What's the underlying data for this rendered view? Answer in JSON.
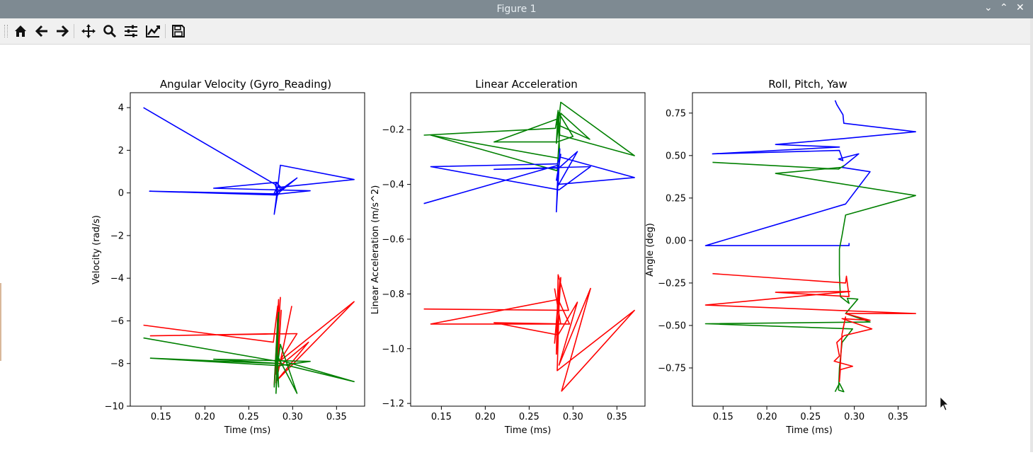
{
  "window": {
    "title": "Figure 1",
    "controls": [
      "⌄",
      "⌃",
      "✕"
    ]
  },
  "toolbar": {
    "buttons": [
      {
        "name": "home-icon"
      },
      {
        "name": "back-arrow-icon"
      },
      {
        "name": "forward-arrow-icon"
      },
      {
        "name": "pan-icon"
      },
      {
        "name": "zoom-icon"
      },
      {
        "name": "subplots-config-icon"
      },
      {
        "name": "edit-axis-icon"
      },
      {
        "name": "save-icon"
      }
    ]
  },
  "colors": {
    "blue": "#0000ff",
    "green": "#008000",
    "red": "#ff0000"
  },
  "chart_data": [
    {
      "type": "line",
      "title": "Angular Velocity (Gyro_Reading)",
      "xlabel": "Time (ms)",
      "ylabel": "Velocity (rad/s)",
      "xlim": [
        0.115,
        0.382
      ],
      "ylim": [
        -10.0,
        4.7
      ],
      "xticks": [
        "0.15",
        "0.20",
        "0.25",
        "0.30",
        "0.35"
      ],
      "xtick_values": [
        0.15,
        0.2,
        0.25,
        0.3,
        0.35
      ],
      "yticks": [
        "4",
        "2",
        "0",
        "−2",
        "−4",
        "−6",
        "−8",
        "−10"
      ],
      "ytick_values": [
        4,
        2,
        0,
        -2,
        -4,
        -6,
        -8,
        -10
      ],
      "grid": false,
      "series": [
        {
          "color": "blue",
          "points": [
            [
              0.13,
              4.0
            ],
            [
              0.28,
              0.4
            ],
            [
              0.283,
              0.0
            ],
            [
              0.279,
              -1.0
            ],
            [
              0.284,
              0.6
            ],
            [
              0.286,
              1.3
            ],
            [
              0.37,
              0.63
            ],
            [
              0.282,
              0.25
            ],
            [
              0.278,
              -0.1
            ],
            [
              0.305,
              0.7
            ],
            [
              0.287,
              0.1
            ],
            [
              0.282,
              0.5
            ],
            [
              0.21,
              0.22
            ],
            [
              0.32,
              0.1
            ],
            [
              0.285,
              -0.05
            ],
            [
              0.137,
              0.08
            ],
            [
              0.283,
              -0.1
            ],
            [
              0.288,
              0.2
            ],
            [
              0.281,
              0.5
            ],
            [
              0.282,
              -0.3
            ]
          ]
        },
        {
          "color": "red",
          "points": [
            [
              0.13,
              -6.2
            ],
            [
              0.278,
              -7.0
            ],
            [
              0.283,
              -5.3
            ],
            [
              0.281,
              -8.5
            ],
            [
              0.286,
              -4.9
            ],
            [
              0.279,
              -9.0
            ],
            [
              0.284,
              -5.0
            ],
            [
              0.282,
              -8.8
            ],
            [
              0.37,
              -5.1
            ],
            [
              0.285,
              -7.9
            ],
            [
              0.305,
              -6.6
            ],
            [
              0.138,
              -6.7
            ],
            [
              0.283,
              -6.6
            ],
            [
              0.28,
              -8.3
            ],
            [
              0.318,
              -7.0
            ],
            [
              0.282,
              -8.8
            ],
            [
              0.287,
              -5.5
            ],
            [
              0.281,
              -8.9
            ],
            [
              0.299,
              -5.3
            ]
          ]
        },
        {
          "color": "green",
          "points": [
            [
              0.13,
              -6.8
            ],
            [
              0.283,
              -7.9
            ],
            [
              0.281,
              -9.4
            ],
            [
              0.284,
              -5.6
            ],
            [
              0.279,
              -9.1
            ],
            [
              0.283,
              -5.9
            ],
            [
              0.282,
              -7.8
            ],
            [
              0.37,
              -8.85
            ],
            [
              0.285,
              -8.0
            ],
            [
              0.21,
              -7.8
            ],
            [
              0.32,
              -7.9
            ],
            [
              0.285,
              -8.1
            ],
            [
              0.138,
              -7.75
            ],
            [
              0.283,
              -8.0
            ],
            [
              0.286,
              -7.1
            ],
            [
              0.305,
              -9.4
            ],
            [
              0.281,
              -7.5
            ],
            [
              0.284,
              -9.1
            ],
            [
              0.282,
              -6.9
            ]
          ]
        }
      ]
    },
    {
      "type": "line",
      "title": "Linear Acceleration",
      "xlabel": "Time (ms)",
      "ylabel": "Linear Acceleration (m/s^2)",
      "xlim": [
        0.115,
        0.382
      ],
      "ylim": [
        -1.21,
        -0.065
      ],
      "xticks": [
        "0.15",
        "0.20",
        "0.25",
        "0.30",
        "0.35"
      ],
      "xtick_values": [
        0.15,
        0.2,
        0.25,
        0.3,
        0.35
      ],
      "yticks": [
        "−0.2",
        "−0.4",
        "−0.6",
        "−0.8",
        "−1.0",
        "−1.2"
      ],
      "ytick_values": [
        -0.2,
        -0.4,
        -0.6,
        -0.8,
        -1.0,
        -1.2
      ],
      "grid": false,
      "series": [
        {
          "color": "green",
          "points": [
            [
              0.13,
              -0.22
            ],
            [
              0.28,
              -0.195
            ],
            [
              0.283,
              -0.13
            ],
            [
              0.281,
              -0.25
            ],
            [
              0.286,
              -0.1
            ],
            [
              0.37,
              -0.295
            ],
            [
              0.285,
              -0.22
            ],
            [
              0.283,
              -0.135
            ],
            [
              0.3,
              -0.225
            ],
            [
              0.282,
              -0.245
            ],
            [
              0.21,
              -0.245
            ],
            [
              0.283,
              -0.16
            ],
            [
              0.285,
              -0.305
            ],
            [
              0.138,
              -0.22
            ],
            [
              0.282,
              -0.35
            ],
            [
              0.286,
              -0.14
            ],
            [
              0.319,
              -0.235
            ],
            [
              0.281,
              -0.18
            ]
          ]
        },
        {
          "color": "blue",
          "points": [
            [
              0.13,
              -0.47
            ],
            [
              0.283,
              -0.33
            ],
            [
              0.281,
              -0.5
            ],
            [
              0.285,
              -0.27
            ],
            [
              0.283,
              -0.4
            ],
            [
              0.37,
              -0.375
            ],
            [
              0.285,
              -0.3
            ],
            [
              0.282,
              -0.41
            ],
            [
              0.305,
              -0.28
            ],
            [
              0.284,
              -0.34
            ],
            [
              0.21,
              -0.345
            ],
            [
              0.32,
              -0.335
            ],
            [
              0.284,
              -0.42
            ],
            [
              0.138,
              -0.335
            ],
            [
              0.282,
              -0.325
            ],
            [
              0.286,
              -0.29
            ],
            [
              0.281,
              -0.385
            ],
            [
              0.283,
              -0.36
            ]
          ]
        },
        {
          "color": "red",
          "points": [
            [
              0.13,
              -0.855
            ],
            [
              0.295,
              -0.86
            ],
            [
              0.283,
              -0.73
            ],
            [
              0.281,
              -1.02
            ],
            [
              0.286,
              -0.74
            ],
            [
              0.279,
              -0.98
            ],
            [
              0.285,
              -0.75
            ],
            [
              0.282,
              -1.08
            ],
            [
              0.37,
              -0.86
            ],
            [
              0.287,
              -1.155
            ],
            [
              0.32,
              -0.78
            ],
            [
              0.284,
              -1.06
            ],
            [
              0.305,
              -0.83
            ],
            [
              0.283,
              -0.95
            ],
            [
              0.21,
              -0.905
            ],
            [
              0.296,
              -0.91
            ],
            [
              0.283,
              -0.82
            ],
            [
              0.138,
              -0.91
            ],
            [
              0.286,
              -0.91
            ],
            [
              0.279,
              -0.78
            ]
          ]
        }
      ]
    },
    {
      "type": "line",
      "title": "Roll, Pitch, Yaw",
      "xlabel": "Time (ms)",
      "ylabel": "Angle (deg)",
      "xlim": [
        0.115,
        0.382
      ],
      "ylim": [
        -0.975,
        0.87
      ],
      "xticks": [
        "0.15",
        "0.20",
        "0.25",
        "0.30",
        "0.35"
      ],
      "xtick_values": [
        0.15,
        0.2,
        0.25,
        0.3,
        0.35
      ],
      "yticks": [
        "0.75",
        "0.50",
        "0.25",
        "0.00",
        "−0.25",
        "−0.50",
        "−0.75"
      ],
      "ytick_values": [
        0.75,
        0.5,
        0.25,
        0.0,
        -0.25,
        -0.5,
        -0.75
      ],
      "grid": false,
      "series": [
        {
          "color": "blue",
          "points": [
            [
              0.278,
              0.825
            ],
            [
              0.28,
              0.8
            ],
            [
              0.287,
              0.74
            ],
            [
              0.288,
              0.69
            ],
            [
              0.37,
              0.64
            ],
            [
              0.288,
              0.6
            ],
            [
              0.21,
              0.565
            ],
            [
              0.283,
              0.55
            ],
            [
              0.138,
              0.51
            ],
            [
              0.283,
              0.53
            ],
            [
              0.287,
              0.47
            ],
            [
              0.282,
              0.48
            ],
            [
              0.305,
              0.51
            ],
            [
              0.286,
              0.43
            ],
            [
              0.318,
              0.405
            ],
            [
              0.29,
              0.215
            ],
            [
              0.13,
              -0.03
            ],
            [
              0.294,
              -0.03
            ],
            [
              0.294,
              -0.015
            ]
          ]
        },
        {
          "color": "green",
          "points": [
            [
              0.138,
              0.46
            ],
            [
              0.282,
              0.42
            ],
            [
              0.288,
              0.44
            ],
            [
              0.285,
              0.43
            ],
            [
              0.21,
              0.395
            ],
            [
              0.37,
              0.265
            ],
            [
              0.29,
              0.15
            ],
            [
              0.286,
              0.03
            ],
            [
              0.283,
              -0.05
            ],
            [
              0.283,
              -0.2
            ],
            [
              0.284,
              -0.33
            ],
            [
              0.294,
              -0.37
            ],
            [
              0.292,
              -0.34
            ],
            [
              0.304,
              -0.345
            ],
            [
              0.29,
              -0.43
            ],
            [
              0.318,
              -0.48
            ],
            [
              0.13,
              -0.49
            ],
            [
              0.298,
              -0.52
            ],
            [
              0.286,
              -0.6
            ],
            [
              0.283,
              -0.75
            ],
            [
              0.282,
              -0.88
            ],
            [
              0.288,
              -0.89
            ],
            [
              0.283,
              -0.84
            ],
            [
              0.278,
              -0.89
            ]
          ]
        },
        {
          "color": "red",
          "points": [
            [
              0.138,
              -0.195
            ],
            [
              0.29,
              -0.25
            ],
            [
              0.291,
              -0.21
            ],
            [
              0.294,
              -0.33
            ],
            [
              0.21,
              -0.305
            ],
            [
              0.295,
              -0.3
            ],
            [
              0.13,
              -0.38
            ],
            [
              0.37,
              -0.43
            ],
            [
              0.29,
              -0.43
            ],
            [
              0.318,
              -0.47
            ],
            [
              0.286,
              -0.46
            ],
            [
              0.32,
              -0.52
            ],
            [
              0.288,
              -0.56
            ],
            [
              0.28,
              -0.6
            ],
            [
              0.283,
              -0.68
            ],
            [
              0.277,
              -0.71
            ],
            [
              0.298,
              -0.74
            ],
            [
              0.284,
              -0.76
            ],
            [
              0.283,
              -0.83
            ],
            [
              0.286,
              -0.55
            ],
            [
              0.29,
              -0.45
            ],
            [
              0.287,
              -0.52
            ]
          ]
        }
      ]
    }
  ]
}
